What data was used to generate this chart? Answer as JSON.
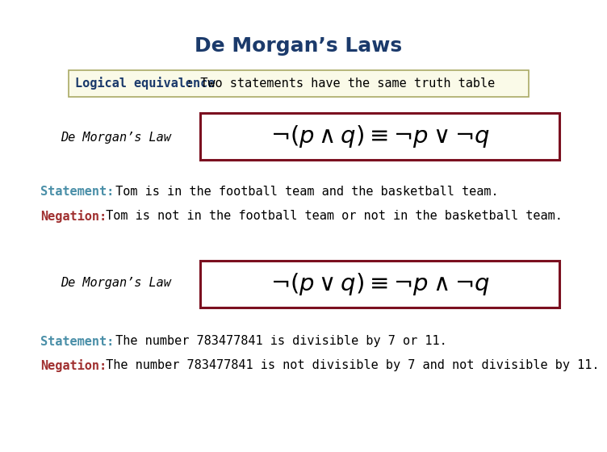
{
  "title": "De Morgan’s Laws",
  "title_color": "#1b3a6b",
  "title_fontsize": 18,
  "bg_color": "#ffffff",
  "logical_equiv_label": "Logical equivalence",
  "logical_equiv_rest": ": Two statements have the same truth table",
  "logical_equiv_label_color": "#1b3a6b",
  "logical_equiv_rest_color": "#000000",
  "logical_equiv_box_bg": "#fafae8",
  "logical_equiv_box_border": "#aaaa66",
  "demorgan_label": "De Morgan’s Law",
  "demorgan_label_color": "#000000",
  "formula1": "$\\neg(p \\wedge q) \\equiv \\neg p \\vee \\neg q$",
  "formula2": "$\\neg(p \\vee q) \\equiv \\neg p \\wedge \\neg q$",
  "formula_box_border": "#7b1020",
  "formula_box_bg": "#ffffff",
  "statement_label": "Statement:",
  "negation_label": "Negation:",
  "statement_color": "#4a8fa8",
  "negation_color": "#a03030",
  "text_color": "#000000",
  "statement1": " Tom is in the football team and the basketball team.",
  "negation1": " Tom is not in the football team or not in the basketball team.",
  "statement2": " The number 783477841 is divisible by 7 or 11.",
  "negation2": " The number 783477841 is not divisible by 7 and not divisible by 11.",
  "body_fontsize": 11,
  "label_fontsize": 11,
  "demorgan_label_fontsize": 11
}
